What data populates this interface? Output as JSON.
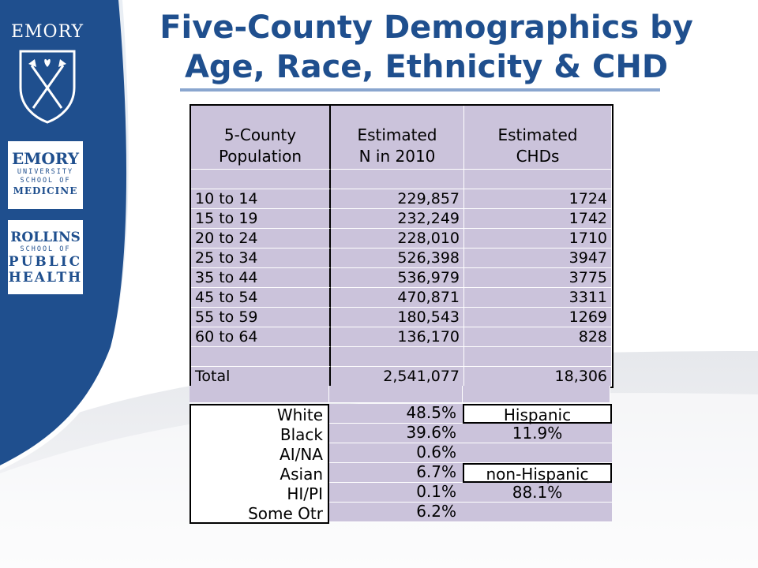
{
  "title": {
    "line1": "Five-County Demographics by",
    "line2": "Age, Race, Ethnicity & CHD"
  },
  "logos": {
    "emory": "EMORY",
    "medicine": {
      "line1": "EMORY",
      "line2": "UNIVERSITY",
      "line3": "SCHOOL OF",
      "line4": "MEDICINE"
    },
    "public_health": {
      "line1": "ROLLINS",
      "line2": "SCHOOL OF",
      "line3": "PUBLIC",
      "line4": "HEALTH"
    }
  },
  "age_table": {
    "headers": [
      {
        "line1": "5-County",
        "line2": "Population"
      },
      {
        "line1": "Estimated",
        "line2": "N in 2010"
      },
      {
        "line1": "Estimated",
        "line2": "CHDs"
      }
    ],
    "rows": [
      {
        "age": "",
        "n": "",
        "chd": ""
      },
      {
        "age": "10 to 14",
        "n": "229,857",
        "chd": "1724"
      },
      {
        "age": "15 to 19",
        "n": "232,249",
        "chd": "1742"
      },
      {
        "age": "20 to 24",
        "n": "228,010",
        "chd": "1710"
      },
      {
        "age": "25 to 34",
        "n": "526,398",
        "chd": "3947"
      },
      {
        "age": "35 to 44",
        "n": "536,979",
        "chd": "3775"
      },
      {
        "age": "45 to 54",
        "n": "470,871",
        "chd": "3311"
      },
      {
        "age": "55 to 59",
        "n": "180,543",
        "chd": "1269"
      },
      {
        "age": "60 to 64",
        "n": "136,170",
        "chd": "828"
      },
      {
        "age": "",
        "n": "",
        "chd": ""
      },
      {
        "age": "Total",
        "n": "2,541,077",
        "chd": "18,306"
      }
    ]
  },
  "race_table": {
    "labels": [
      "White",
      "Black",
      "AI/NA",
      "Asian",
      "HI/PI",
      "Some Otr"
    ],
    "values": [
      "48.5%",
      "39.6%",
      "0.6%",
      "6.7%",
      "0.1%",
      "6.2%"
    ]
  },
  "ethnicity": {
    "hispanic_label": "Hispanic",
    "hispanic_value": "11.9%",
    "non_hispanic_label": "non-Hispanic",
    "non_hispanic_value": "88.1%"
  },
  "colors": {
    "brand_blue": "#1f4f8e",
    "cell_lavender": "#cbc3db"
  }
}
